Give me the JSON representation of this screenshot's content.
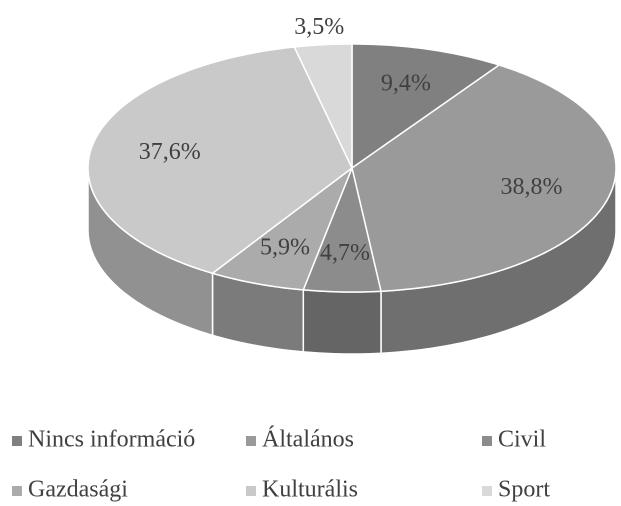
{
  "chart_data": {
    "type": "pie",
    "style": "3d",
    "categories": [
      "Nincs információ",
      "Általános",
      "Civil",
      "Gazdasági",
      "Kulturális",
      "Sport"
    ],
    "values": [
      9.4,
      38.8,
      4.7,
      5.9,
      37.6,
      3.5
    ],
    "value_labels": [
      "9,4%",
      "38,8%",
      "4,7%",
      "5,9%",
      "37,6%",
      "3,5%"
    ],
    "colors": [
      "#808080",
      "#9a9a9a",
      "#8c8c8c",
      "#ababab",
      "#c9c9c9",
      "#d9d9d9"
    ],
    "legend": "bottom"
  }
}
